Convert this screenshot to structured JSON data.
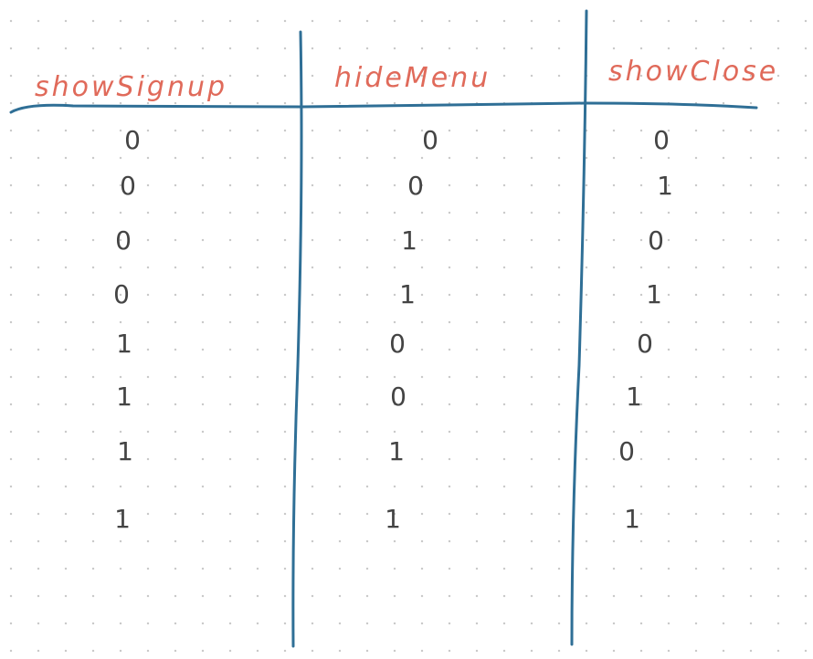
{
  "table": {
    "headers": [
      "showSignup",
      "hideMenu",
      "showClose"
    ],
    "rows": [
      [
        "0",
        "0",
        "0"
      ],
      [
        "0",
        "0",
        "1"
      ],
      [
        "0",
        "1",
        "0"
      ],
      [
        "0",
        "1",
        "1"
      ],
      [
        "1",
        "0",
        "0"
      ],
      [
        "1",
        "0",
        "1"
      ],
      [
        "1",
        "1",
        "0"
      ],
      [
        "1",
        "1",
        "1"
      ]
    ]
  },
  "colors": {
    "header_text": "#e06a5a",
    "lines": "#2f6f96",
    "values": "#444444"
  }
}
